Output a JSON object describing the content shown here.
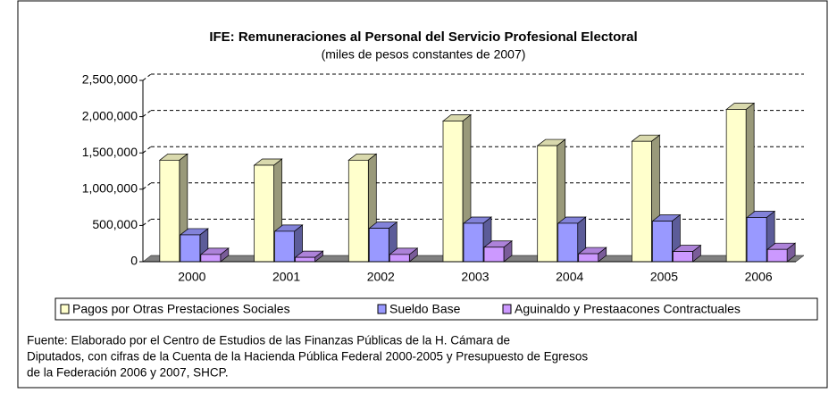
{
  "chart_data": {
    "type": "bar3d",
    "title": "IFE: Remuneraciones al Personal del Servicio Profesional Electoral",
    "subtitle": "(miles de pesos constantes de 2007)",
    "categories": [
      "2000",
      "2001",
      "2002",
      "2003",
      "2004",
      "2005",
      "2006"
    ],
    "series": [
      {
        "name": "Pagos por Otras Prestaciones Sociales",
        "color": "#ffffcc",
        "values": [
          1400000,
          1330000,
          1400000,
          1940000,
          1600000,
          1660000,
          2100000
        ]
      },
      {
        "name": "Sueldo Base",
        "color": "#9999ff",
        "values": [
          370000,
          420000,
          460000,
          530000,
          530000,
          560000,
          610000
        ]
      },
      {
        "name": "Aguinaldo y Prestaacones Contractuales",
        "color": "#cc99ff",
        "values": [
          100000,
          60000,
          100000,
          200000,
          110000,
          140000,
          170000
        ]
      }
    ],
    "ylim": [
      0,
      2500000
    ],
    "yticks": [
      0,
      {
        "value": 500000,
        "label": "500,000"
      },
      {
        "value": 1000000,
        "label": "1,000,000"
      },
      {
        "value": 1500000,
        "label": "1,500,000"
      },
      {
        "value": 2000000,
        "label": "2,000,000"
      },
      {
        "value": 2500000,
        "label": "2,500,000"
      }
    ],
    "grid": true,
    "note": [
      "Fuente:  Elaborado  por el Centro de  Estudios de las  Finanzas  Públicas de la  H.  Cámara de",
      "Diputados, con cifras de la Cuenta de la Hacienda Pública Federal 2000-2005 y Presupuesto de Egresos",
      "de la Federación 2006 y 2007, SHCP."
    ]
  }
}
